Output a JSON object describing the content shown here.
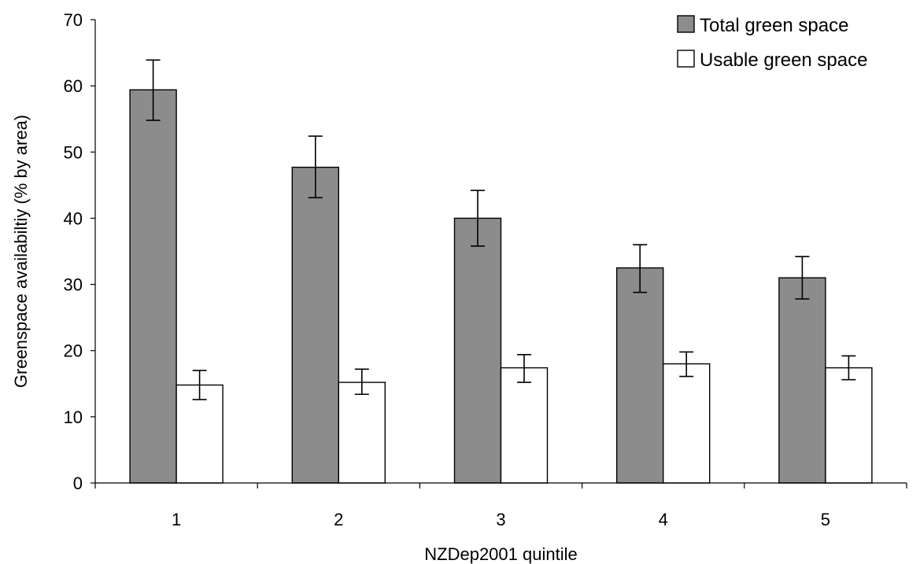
{
  "chart_data": {
    "type": "bar",
    "title": "",
    "xlabel": "NZDep2001 quintile",
    "ylabel": "Greenspace availabiltiy (% by area)",
    "categories": [
      "1",
      "2",
      "3",
      "4",
      "5"
    ],
    "ylim": [
      0,
      70
    ],
    "yticks": [
      0,
      10,
      20,
      30,
      40,
      50,
      60,
      70
    ],
    "grid": false,
    "legend_position": "top-right",
    "series": [
      {
        "name": "Total green space",
        "color": "#8c8c8c",
        "values": [
          59.4,
          47.7,
          40.0,
          32.5,
          31.0
        ],
        "error_low": [
          54.8,
          43.1,
          35.8,
          28.8,
          27.8
        ],
        "error_high": [
          63.9,
          52.4,
          44.2,
          36.0,
          34.2
        ]
      },
      {
        "name": "Usable green space",
        "color": "#ffffff",
        "values": [
          14.8,
          15.2,
          17.4,
          18.0,
          17.4
        ],
        "error_low": [
          12.6,
          13.4,
          15.2,
          16.1,
          15.6
        ],
        "error_high": [
          17.0,
          17.2,
          19.4,
          19.8,
          19.2
        ]
      }
    ]
  }
}
